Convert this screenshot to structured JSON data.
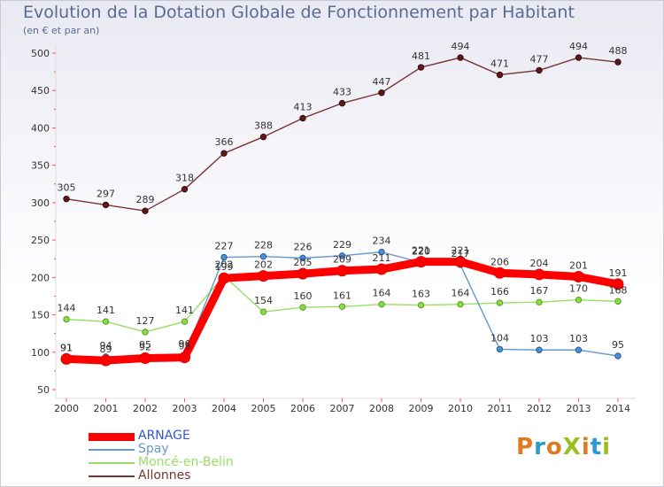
{
  "title": "Evolution de la Dotation Globale de Fonctionnement par Habitant",
  "subtitle": "(en € et par an)",
  "logo_text": "ProXiti",
  "chart_data": {
    "type": "line",
    "title": "Evolution de la Dotation Globale de Fonctionnement par Habitant",
    "ylabel": "(en € et par an)",
    "xlabel": "",
    "x": [
      "2000",
      "2001",
      "2002",
      "2003",
      "2004",
      "2005",
      "2006",
      "2007",
      "2008",
      "2009",
      "2010",
      "2011",
      "2012",
      "2013",
      "2014"
    ],
    "ylim": [
      50,
      500
    ],
    "yticks": [
      50,
      100,
      150,
      200,
      250,
      300,
      350,
      400,
      450,
      500
    ],
    "grid": false,
    "legend": "bottom-left",
    "series": [
      {
        "name": "ARNAGE",
        "color": "#ff0000",
        "values": [
          91,
          89,
          92,
          93,
          199,
          202,
          205,
          209,
          211,
          221,
          221,
          206,
          204,
          201,
          191
        ]
      },
      {
        "name": "Spay",
        "color": "#6699cc",
        "values": [
          91,
          94,
          95,
          96,
          227,
          228,
          226,
          229,
          234,
          220,
          217,
          104,
          103,
          103,
          95
        ]
      },
      {
        "name": "Moncé-en-Belin",
        "color": "#99dd66",
        "values": [
          144,
          141,
          127,
          141,
          202,
          154,
          160,
          161,
          164,
          163,
          164,
          166,
          167,
          170,
          168
        ]
      },
      {
        "name": "Allonnes",
        "color": "#7a3232",
        "values": [
          305,
          297,
          289,
          318,
          366,
          388,
          413,
          433,
          447,
          481,
          494,
          471,
          477,
          494,
          488
        ]
      }
    ],
    "annotations": [
      {
        "series": "Allonnes",
        "labels": [
          "305",
          "297",
          "289",
          "318",
          "366",
          "388",
          "413",
          "433",
          "447",
          "481",
          "494",
          "471",
          "477",
          "494",
          "488"
        ]
      },
      {
        "series": "Spay",
        "labels": [
          "91",
          "94",
          "95",
          "96",
          "227",
          "228",
          "226",
          "229",
          "234",
          "220",
          "217",
          "104",
          "103",
          "103",
          "95"
        ]
      },
      {
        "series": "Moncé-en-Belin",
        "labels": [
          "144",
          "141",
          "127",
          "141",
          "202",
          "154",
          "160",
          "161",
          "164",
          "163",
          "164",
          "166",
          "167",
          "170",
          "168"
        ]
      },
      {
        "series": "ARNAGE",
        "labels": [
          "91",
          "89",
          "92",
          "93",
          "199",
          "202",
          "205",
          "209",
          "211",
          "221",
          "221",
          "206",
          "204",
          "201",
          "191"
        ]
      }
    ]
  }
}
